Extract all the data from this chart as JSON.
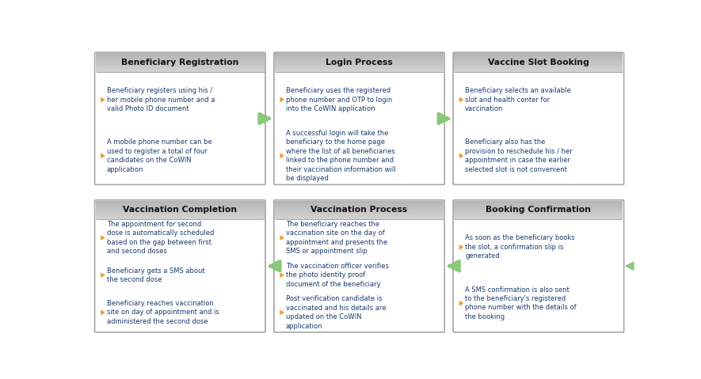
{
  "background_color": "#ffffff",
  "arrow_color": "#8cc87a",
  "header_color_top": "#c8c8c8",
  "header_color_bot": "#b0b0b0",
  "box_border": "#aaaaaa",
  "box_bg": "#ffffff",
  "bullet_color": "#f0a030",
  "text_color": "#1a3a6b",
  "header_text_color": "#111111",
  "boxes": [
    {
      "id": "box1",
      "title": "Beneficiary Registration",
      "bullets": [
        "Beneficiary registers using his /\nher mobile phone number and a\nvalid Photo ID document",
        "A mobile phone number can be\nused to register a total of four\ncandidates on the CoWIN\napplication"
      ],
      "col": 0,
      "row": 0
    },
    {
      "id": "box2",
      "title": "Login Process",
      "bullets": [
        "Beneficiary uses the registered\nphone number and OTP to login\ninto the CoWIN application",
        "A successful login will take the\nbeneficiary to the home page\nwhere the list of all beneficiaries\nlinked to the phone number and\ntheir vaccination information will\nbe displayed"
      ],
      "col": 1,
      "row": 0
    },
    {
      "id": "box3",
      "title": "Vaccine Slot Booking",
      "bullets": [
        "Beneficiary selects an available\nslot and health center for\nvaccination",
        "Beneficiary also has the\nprovision to reschedule his / her\nappointment in case the earlier\nselected slot is not convenient"
      ],
      "col": 2,
      "row": 0
    },
    {
      "id": "box4",
      "title": "Booking Confirmation",
      "bullets": [
        "As soon as the beneficiary books\nthe slot, a confirmation slip is\ngenerated",
        "A SMS confirmation is also sent\nto the beneficiary's registered\nphone number with the details of\nthe booking"
      ],
      "col": 2,
      "row": 1
    },
    {
      "id": "box5",
      "title": "Vaccination Process",
      "bullets": [
        "The beneficiary reaches the\nvaccination site on the day of\nappointment and presents the\nSMS or appointment slip",
        "The vaccination officer verifies\nthe photo identity proof\ndocument of the beneficiary",
        "Post verification candidate is\nvaccinated and his details are\nupdated on the CoWIN\napplication"
      ],
      "col": 1,
      "row": 1
    },
    {
      "id": "box6",
      "title": "Vaccination Completion",
      "bullets": [
        "The appointment for second\ndose is automatically scheduled\nbased on the gap between first\nand second doses",
        "Beneficiary gets a SMS about\nthe second dose",
        "Beneficiary reaches vaccination\nsite on day of appointment and is\nadministered the second dose"
      ],
      "col": 0,
      "row": 1
    }
  ]
}
